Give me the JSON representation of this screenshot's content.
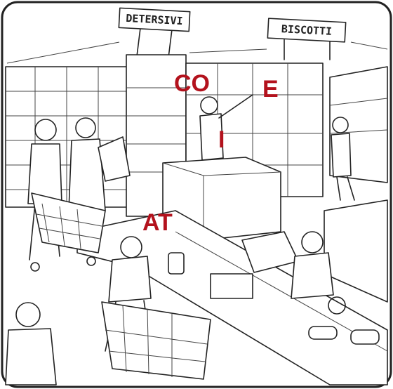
{
  "signs": [
    "DETERSIVI",
    "BISCOTTI"
  ],
  "overlay_letters": [
    "CO",
    "E",
    "I",
    "AT"
  ]
}
